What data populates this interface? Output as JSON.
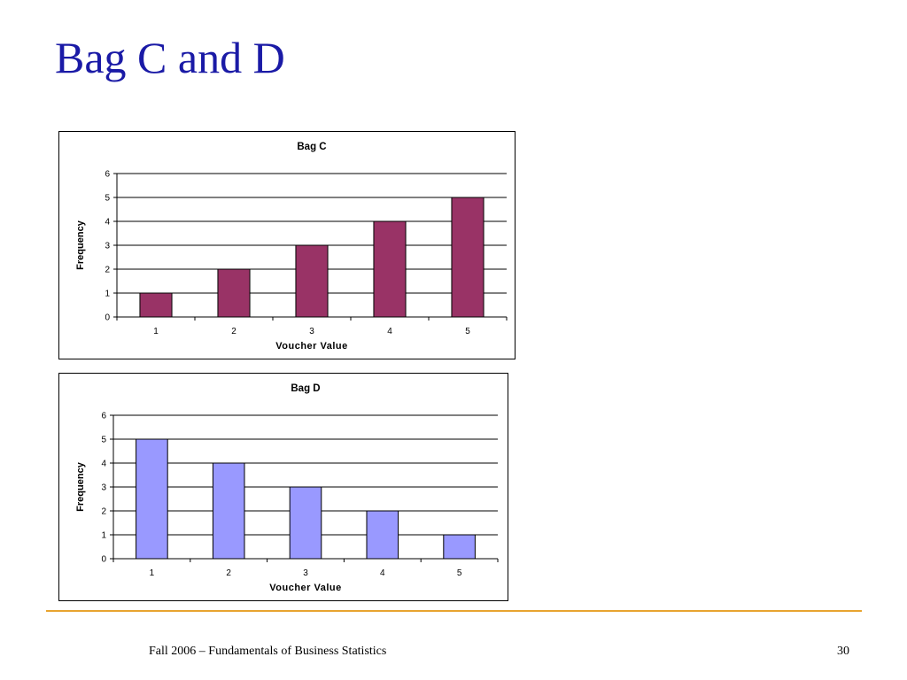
{
  "slide": {
    "title": "Bag C and D",
    "footer": "Fall 2006 – Fundamentals of Business Statistics",
    "page_number": "30",
    "accent_color": "#e8a430"
  },
  "chart_data": [
    {
      "type": "bar",
      "title": "Bag C",
      "xlabel": "Voucher Value",
      "ylabel": "Frequency",
      "categories": [
        "1",
        "2",
        "3",
        "4",
        "5"
      ],
      "values": [
        1,
        2,
        3,
        4,
        5
      ],
      "ylim": [
        0,
        6
      ],
      "yticks": [
        0,
        1,
        2,
        3,
        4,
        5,
        6
      ],
      "grid": true,
      "bar_color": "#993366"
    },
    {
      "type": "bar",
      "title": "Bag D",
      "xlabel": "Voucher Value",
      "ylabel": "Frequency",
      "categories": [
        "1",
        "2",
        "3",
        "4",
        "5"
      ],
      "values": [
        5,
        4,
        3,
        2,
        1
      ],
      "ylim": [
        0,
        6
      ],
      "yticks": [
        0,
        1,
        2,
        3,
        4,
        5,
        6
      ],
      "grid": true,
      "bar_color": "#9999ff"
    }
  ]
}
